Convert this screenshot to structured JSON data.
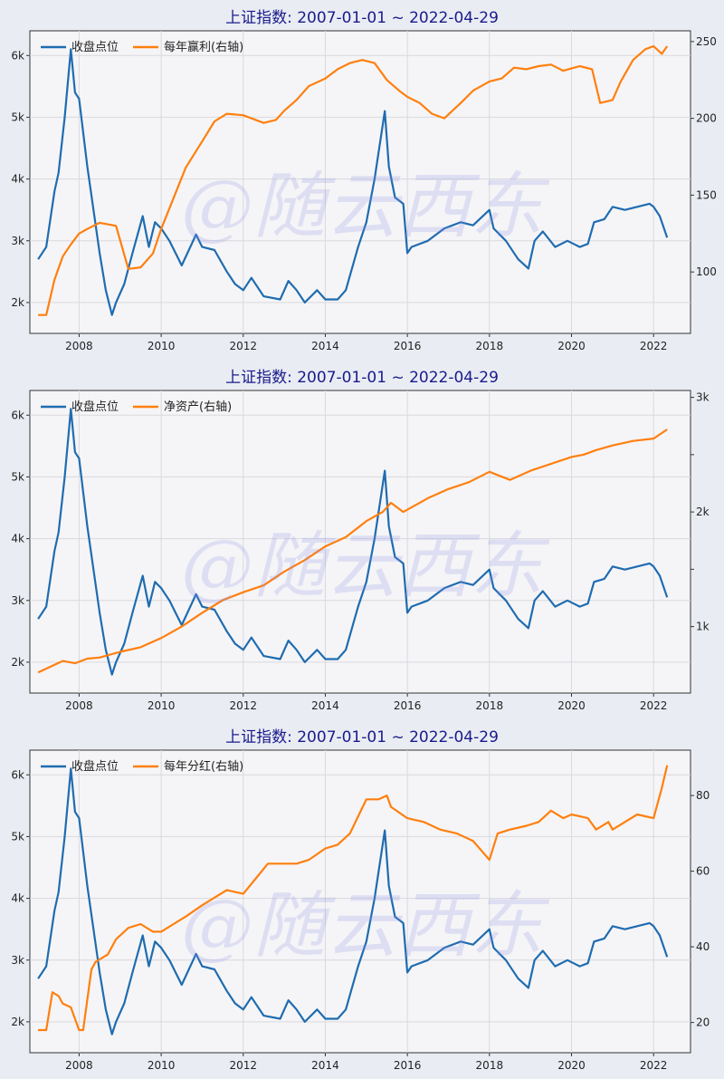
{
  "colors": {
    "index_line": "#1f6cb0",
    "secondary_line": "#ff7f0e",
    "panel_bg": "#f5f5f7",
    "page_bg": "#e9edf3",
    "grid": "#d9d9de",
    "title": "#1a1a8c",
    "watermark": "#8b8fe8"
  },
  "watermark": "@随云西东",
  "chart_data": [
    {
      "type": "line",
      "title": "上证指数:  2007-01-01 ~ 2022-04-29",
      "x_ticks": [
        "2008",
        "2010",
        "2012",
        "2014",
        "2016",
        "2018",
        "2020",
        "2022"
      ],
      "xlim": [
        2006.8,
        2022.9
      ],
      "left_axis": {
        "ylim": [
          1500,
          6400
        ],
        "ticks": [
          2000,
          3000,
          4000,
          5000,
          6000
        ],
        "tick_labels": [
          "2k",
          "3k",
          "4k",
          "5k",
          "6k"
        ]
      },
      "right_axis": {
        "ylim": [
          60,
          257
        ],
        "ticks": [
          100,
          150,
          200,
          250
        ],
        "tick_labels": [
          "100",
          "150",
          "200",
          "250"
        ]
      },
      "legend_position": "top-left",
      "series": [
        {
          "name": "收盘点位",
          "axis": "left",
          "x": [
            2007.0,
            2007.2,
            2007.4,
            2007.5,
            2007.65,
            2007.8,
            2007.9,
            2008.0,
            2008.2,
            2008.35,
            2008.5,
            2008.65,
            2008.8,
            2008.9,
            2009.1,
            2009.3,
            2009.55,
            2009.7,
            2009.85,
            2010.0,
            2010.2,
            2010.5,
            2010.85,
            2011.0,
            2011.3,
            2011.6,
            2011.8,
            2012.0,
            2012.2,
            2012.5,
            2012.9,
            2013.1,
            2013.3,
            2013.5,
            2013.8,
            2014.0,
            2014.3,
            2014.5,
            2014.8,
            2015.0,
            2015.2,
            2015.45,
            2015.55,
            2015.7,
            2015.9,
            2016.0,
            2016.1,
            2016.5,
            2016.9,
            2017.3,
            2017.6,
            2018.0,
            2018.1,
            2018.4,
            2018.7,
            2018.95,
            2019.1,
            2019.3,
            2019.6,
            2019.9,
            2020.2,
            2020.4,
            2020.55,
            2020.8,
            2021.0,
            2021.3,
            2021.6,
            2021.9,
            2022.0,
            2022.15,
            2022.33
          ],
          "values": [
            2700,
            2900,
            3800,
            4100,
            5000,
            6100,
            5400,
            5300,
            4200,
            3500,
            2800,
            2200,
            1800,
            2000,
            2300,
            2800,
            3400,
            2900,
            3300,
            3200,
            3000,
            2600,
            3100,
            2900,
            2850,
            2500,
            2300,
            2200,
            2400,
            2100,
            2050,
            2350,
            2200,
            2000,
            2200,
            2050,
            2050,
            2200,
            2900,
            3300,
            4000,
            5100,
            4200,
            3700,
            3600,
            2800,
            2900,
            3000,
            3200,
            3300,
            3250,
            3500,
            3200,
            3000,
            2700,
            2550,
            3000,
            3150,
            2900,
            3000,
            2900,
            2950,
            3300,
            3350,
            3550,
            3500,
            3550,
            3600,
            3550,
            3400,
            3050
          ]
        },
        {
          "name": "每年赢利(右轴)",
          "axis": "right",
          "x": [
            2007.0,
            2007.2,
            2007.4,
            2007.6,
            2007.8,
            2008.0,
            2008.2,
            2008.5,
            2008.9,
            2009.2,
            2009.5,
            2009.8,
            2010.0,
            2010.3,
            2010.6,
            2011.0,
            2011.3,
            2011.6,
            2012.0,
            2012.5,
            2012.8,
            2013.0,
            2013.3,
            2013.6,
            2014.0,
            2014.3,
            2014.6,
            2014.9,
            2015.2,
            2015.5,
            2015.8,
            2016.0,
            2016.3,
            2016.6,
            2016.9,
            2017.3,
            2017.6,
            2018.0,
            2018.3,
            2018.6,
            2018.9,
            2019.2,
            2019.5,
            2019.8,
            2020.2,
            2020.5,
            2020.7,
            2021.0,
            2021.2,
            2021.5,
            2021.8,
            2022.0,
            2022.2,
            2022.33
          ],
          "values": [
            72,
            72,
            95,
            110,
            118,
            125,
            128,
            132,
            130,
            102,
            103,
            112,
            128,
            148,
            168,
            185,
            198,
            203,
            202,
            197,
            199,
            205,
            212,
            221,
            226,
            232,
            236,
            238,
            236,
            225,
            218,
            214,
            210,
            203,
            200,
            210,
            218,
            224,
            226,
            233,
            232,
            234,
            235,
            231,
            234,
            232,
            210,
            212,
            224,
            238,
            245,
            247,
            242,
            247
          ]
        }
      ]
    },
    {
      "type": "line",
      "title": "上证指数:  2007-01-01 ~ 2022-04-29",
      "x_ticks": [
        "2008",
        "2010",
        "2012",
        "2014",
        "2016",
        "2018",
        "2020",
        "2022"
      ],
      "xlim": [
        2006.8,
        2022.9
      ],
      "left_axis": {
        "ylim": [
          1500,
          6400
        ],
        "ticks": [
          2000,
          3000,
          4000,
          5000,
          6000
        ],
        "tick_labels": [
          "2k",
          "3k",
          "4k",
          "5k",
          "6k"
        ]
      },
      "right_axis": {
        "ylim": [
          420,
          3060
        ],
        "ticks": [
          1000,
          1500,
          2000,
          2500,
          3000
        ],
        "tick_labels": [
          "1k",
          "",
          "2k",
          "",
          "3k"
        ]
      },
      "legend_position": "top-left",
      "series": [
        {
          "name": "收盘点位",
          "axis": "left",
          "x": [
            2007.0,
            2007.2,
            2007.4,
            2007.5,
            2007.65,
            2007.8,
            2007.9,
            2008.0,
            2008.2,
            2008.35,
            2008.5,
            2008.65,
            2008.8,
            2008.9,
            2009.1,
            2009.3,
            2009.55,
            2009.7,
            2009.85,
            2010.0,
            2010.2,
            2010.5,
            2010.85,
            2011.0,
            2011.3,
            2011.6,
            2011.8,
            2012.0,
            2012.2,
            2012.5,
            2012.9,
            2013.1,
            2013.3,
            2013.5,
            2013.8,
            2014.0,
            2014.3,
            2014.5,
            2014.8,
            2015.0,
            2015.2,
            2015.45,
            2015.55,
            2015.7,
            2015.9,
            2016.0,
            2016.1,
            2016.5,
            2016.9,
            2017.3,
            2017.6,
            2018.0,
            2018.1,
            2018.4,
            2018.7,
            2018.95,
            2019.1,
            2019.3,
            2019.6,
            2019.9,
            2020.2,
            2020.4,
            2020.55,
            2020.8,
            2021.0,
            2021.3,
            2021.6,
            2021.9,
            2022.0,
            2022.15,
            2022.33
          ],
          "values": [
            2700,
            2900,
            3800,
            4100,
            5000,
            6100,
            5400,
            5300,
            4200,
            3500,
            2800,
            2200,
            1800,
            2000,
            2300,
            2800,
            3400,
            2900,
            3300,
            3200,
            3000,
            2600,
            3100,
            2900,
            2850,
            2500,
            2300,
            2200,
            2400,
            2100,
            2050,
            2350,
            2200,
            2000,
            2200,
            2050,
            2050,
            2200,
            2900,
            3300,
            4000,
            5100,
            4200,
            3700,
            3600,
            2800,
            2900,
            3000,
            3200,
            3300,
            3250,
            3500,
            3200,
            3000,
            2700,
            2550,
            3000,
            3150,
            2900,
            3000,
            2900,
            2950,
            3300,
            3350,
            3550,
            3500,
            3550,
            3600,
            3550,
            3400,
            3050
          ]
        },
        {
          "name": "净资产(右轴)",
          "axis": "right",
          "x": [
            2007.0,
            2007.3,
            2007.6,
            2007.9,
            2008.2,
            2008.5,
            2008.8,
            2009.0,
            2009.5,
            2010.0,
            2010.5,
            2011.0,
            2011.5,
            2012.0,
            2012.5,
            2013.0,
            2013.5,
            2014.0,
            2014.5,
            2015.0,
            2015.4,
            2015.6,
            2015.9,
            2016.5,
            2017.0,
            2017.5,
            2018.0,
            2018.5,
            2019.0,
            2019.5,
            2020.0,
            2020.3,
            2020.6,
            2021.0,
            2021.5,
            2022.0,
            2022.33
          ],
          "values": [
            600,
            650,
            700,
            680,
            720,
            730,
            760,
            780,
            820,
            900,
            1000,
            1120,
            1230,
            1300,
            1360,
            1480,
            1580,
            1700,
            1780,
            1920,
            2000,
            2080,
            2000,
            2120,
            2200,
            2260,
            2350,
            2280,
            2360,
            2420,
            2480,
            2500,
            2540,
            2580,
            2620,
            2640,
            2720
          ]
        }
      ]
    },
    {
      "type": "line",
      "title": "上证指数:  2007-01-01 ~ 2022-04-29",
      "x_ticks": [
        "2008",
        "2010",
        "2012",
        "2014",
        "2016",
        "2018",
        "2020",
        "2022"
      ],
      "xlim": [
        2006.8,
        2022.9
      ],
      "left_axis": {
        "ylim": [
          1500,
          6400
        ],
        "ticks": [
          2000,
          3000,
          4000,
          5000,
          6000
        ],
        "tick_labels": [
          "2k",
          "3k",
          "4k",
          "5k",
          "6k"
        ]
      },
      "right_axis": {
        "ylim": [
          12,
          92
        ],
        "ticks": [
          20,
          40,
          60,
          80
        ],
        "tick_labels": [
          "20",
          "40",
          "60",
          "80"
        ]
      },
      "legend_position": "top-left",
      "series": [
        {
          "name": "收盘点位",
          "axis": "left",
          "x": [
            2007.0,
            2007.2,
            2007.4,
            2007.5,
            2007.65,
            2007.8,
            2007.9,
            2008.0,
            2008.2,
            2008.35,
            2008.5,
            2008.65,
            2008.8,
            2008.9,
            2009.1,
            2009.3,
            2009.55,
            2009.7,
            2009.85,
            2010.0,
            2010.2,
            2010.5,
            2010.85,
            2011.0,
            2011.3,
            2011.6,
            2011.8,
            2012.0,
            2012.2,
            2012.5,
            2012.9,
            2013.1,
            2013.3,
            2013.5,
            2013.8,
            2014.0,
            2014.3,
            2014.5,
            2014.8,
            2015.0,
            2015.2,
            2015.45,
            2015.55,
            2015.7,
            2015.9,
            2016.0,
            2016.1,
            2016.5,
            2016.9,
            2017.3,
            2017.6,
            2018.0,
            2018.1,
            2018.4,
            2018.7,
            2018.95,
            2019.1,
            2019.3,
            2019.6,
            2019.9,
            2020.2,
            2020.4,
            2020.55,
            2020.8,
            2021.0,
            2021.3,
            2021.6,
            2021.9,
            2022.0,
            2022.15,
            2022.33
          ],
          "values": [
            2700,
            2900,
            3800,
            4100,
            5000,
            6100,
            5400,
            5300,
            4200,
            3500,
            2800,
            2200,
            1800,
            2000,
            2300,
            2800,
            3400,
            2900,
            3300,
            3200,
            3000,
            2600,
            3100,
            2900,
            2850,
            2500,
            2300,
            2200,
            2400,
            2100,
            2050,
            2350,
            2200,
            2000,
            2200,
            2050,
            2050,
            2200,
            2900,
            3300,
            4000,
            5100,
            4200,
            3700,
            3600,
            2800,
            2900,
            3000,
            3200,
            3300,
            3250,
            3500,
            3200,
            3000,
            2700,
            2550,
            3000,
            3150,
            2900,
            3000,
            2900,
            2950,
            3300,
            3350,
            3550,
            3500,
            3550,
            3600,
            3550,
            3400,
            3050
          ]
        },
        {
          "name": "每年分红(右轴)",
          "axis": "right",
          "x": [
            2007.0,
            2007.2,
            2007.35,
            2007.5,
            2007.6,
            2007.8,
            2008.0,
            2008.1,
            2008.3,
            2008.4,
            2008.7,
            2008.9,
            2009.2,
            2009.5,
            2009.8,
            2010.0,
            2010.3,
            2010.6,
            2011.0,
            2011.3,
            2011.6,
            2012.0,
            2012.3,
            2012.6,
            2013.0,
            2013.3,
            2013.6,
            2014.0,
            2014.3,
            2014.6,
            2015.0,
            2015.3,
            2015.5,
            2015.6,
            2016.0,
            2016.4,
            2016.8,
            2017.2,
            2017.6,
            2018.0,
            2018.2,
            2018.5,
            2018.9,
            2019.2,
            2019.5,
            2019.8,
            2020.0,
            2020.4,
            2020.6,
            2020.9,
            2021.0,
            2021.3,
            2021.6,
            2022.0,
            2022.2,
            2022.33
          ],
          "values": [
            18,
            18,
            28,
            27,
            25,
            24,
            18,
            18,
            34,
            36,
            38,
            42,
            45,
            46,
            44,
            44,
            46,
            48,
            51,
            53,
            55,
            54,
            58,
            62,
            62,
            62,
            63,
            66,
            67,
            70,
            79,
            79,
            80,
            77,
            74,
            73,
            71,
            70,
            68,
            63,
            70,
            71,
            72,
            73,
            76,
            74,
            75,
            74,
            71,
            73,
            71,
            73,
            75,
            74,
            82,
            88
          ]
        }
      ]
    }
  ]
}
